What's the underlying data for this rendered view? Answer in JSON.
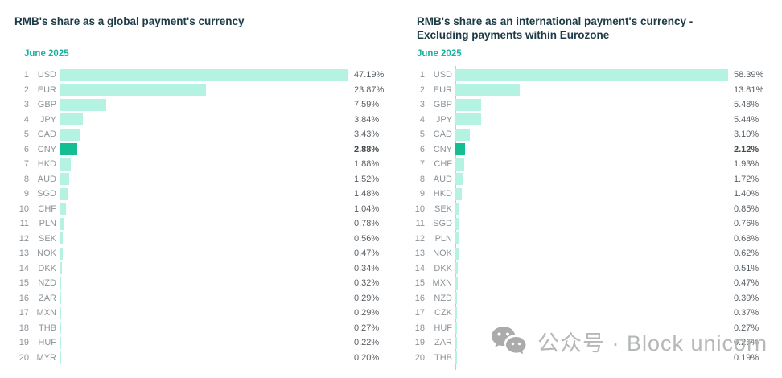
{
  "chart_data": [
    {
      "type": "bar",
      "orientation": "horizontal",
      "title": "RMB's share as a global payment's currency",
      "subtitle": "June 2025",
      "ranks": [
        1,
        2,
        3,
        4,
        5,
        6,
        7,
        8,
        9,
        10,
        11,
        12,
        13,
        14,
        15,
        16,
        17,
        18,
        19,
        20
      ],
      "categories": [
        "USD",
        "EUR",
        "GBP",
        "JPY",
        "CAD",
        "CNY",
        "HKD",
        "AUD",
        "SGD",
        "CHF",
        "PLN",
        "SEK",
        "NOK",
        "DKK",
        "NZD",
        "ZAR",
        "MXN",
        "THB",
        "HUF",
        "MYR"
      ],
      "values": [
        47.19,
        23.87,
        7.59,
        3.84,
        3.43,
        2.88,
        1.88,
        1.52,
        1.48,
        1.04,
        0.78,
        0.56,
        0.47,
        0.34,
        0.32,
        0.29,
        0.29,
        0.27,
        0.22,
        0.2
      ],
      "labels": [
        "47.19%",
        "23.87%",
        "7.59%",
        "3.84%",
        "3.43%",
        "2.88%",
        "1.88%",
        "1.52%",
        "1.48%",
        "1.04%",
        "0.78%",
        "0.56%",
        "0.47%",
        "0.34%",
        "0.32%",
        "0.29%",
        "0.29%",
        "0.27%",
        "0.22%",
        "0.20%"
      ],
      "highlight_index": 5,
      "highlight_category": "CNY",
      "xlim": [
        0,
        47.19
      ],
      "value_label_position": "right-of-bar",
      "grid": false,
      "legend": false
    },
    {
      "type": "bar",
      "orientation": "horizontal",
      "title": "RMB's share as an international payment's currency - Excluding payments within Eurozone",
      "subtitle": "June 2025",
      "ranks": [
        1,
        2,
        3,
        4,
        5,
        6,
        7,
        8,
        9,
        10,
        11,
        12,
        13,
        14,
        15,
        16,
        17,
        18,
        19,
        20
      ],
      "categories": [
        "USD",
        "EUR",
        "GBP",
        "JPY",
        "CAD",
        "CNY",
        "CHF",
        "AUD",
        "HKD",
        "SEK",
        "SGD",
        "PLN",
        "NOK",
        "DKK",
        "MXN",
        "NZD",
        "CZK",
        "HUF",
        "ZAR",
        "THB"
      ],
      "values": [
        58.39,
        13.81,
        5.48,
        5.44,
        3.1,
        2.12,
        1.93,
        1.72,
        1.4,
        0.85,
        0.76,
        0.68,
        0.62,
        0.51,
        0.47,
        0.39,
        0.37,
        0.27,
        0.26,
        0.19
      ],
      "labels": [
        "58.39%",
        "13.81%",
        "5.48%",
        "5.44%",
        "3.10%",
        "2.12%",
        "1.93%",
        "1.72%",
        "1.40%",
        "0.85%",
        "0.76%",
        "0.68%",
        "0.62%",
        "0.51%",
        "0.47%",
        "0.39%",
        "0.37%",
        "0.27%",
        "0.26%",
        "0.19%"
      ],
      "highlight_index": 5,
      "highlight_category": "CNY",
      "xlim": [
        0,
        58.39
      ],
      "value_label_position": "right-of-bar",
      "grid": false,
      "legend": false
    }
  ],
  "watermark": {
    "text": "公众号 · Block unicorn",
    "icon": "wechat-icon"
  },
  "colors": {
    "bar": "#b4f2e2",
    "bar_highlight": "#14bd92",
    "title": "#1d3b46",
    "subtitle": "#1bb0a0",
    "axis_line": "#c3cdcf",
    "label_gray": "#8b9399",
    "value_gray": "#585f65",
    "watermark_gray": "#b6b8b8",
    "watermark_icon": "#ababab"
  }
}
